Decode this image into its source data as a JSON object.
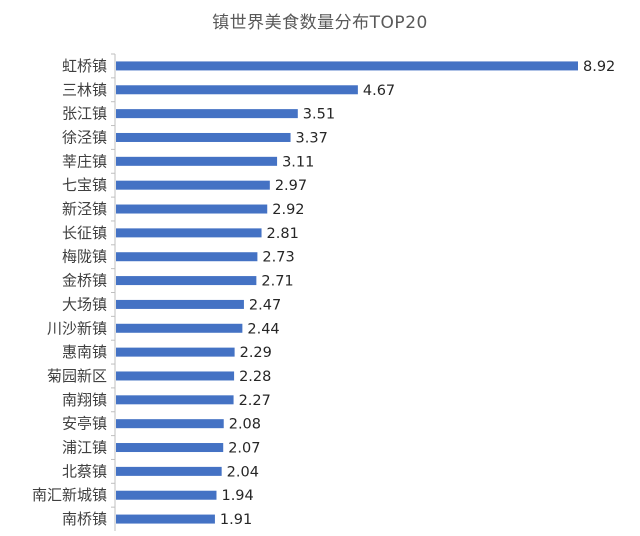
{
  "chart_data": {
    "type": "bar",
    "orientation": "horizontal",
    "title": "镇世界美食数量分布TOP20",
    "categories": [
      "虹桥镇",
      "三林镇",
      "张江镇",
      "徐泾镇",
      "莘庄镇",
      "七宝镇",
      "新泾镇",
      "长征镇",
      "梅陇镇",
      "金桥镇",
      "大场镇",
      "川沙新镇",
      "惠南镇",
      "菊园新区",
      "南翔镇",
      "安亭镇",
      "浦江镇",
      "北蔡镇",
      "南汇新城镇",
      "南桥镇"
    ],
    "values": [
      8.92,
      4.67,
      3.51,
      3.37,
      3.11,
      2.97,
      2.92,
      2.81,
      2.73,
      2.71,
      2.47,
      2.44,
      2.29,
      2.28,
      2.27,
      2.08,
      2.07,
      2.04,
      1.94,
      1.91
    ],
    "value_labels": [
      "8.92",
      "4.67",
      "3.51",
      "3.37",
      "3.11",
      "2.97",
      "2.92",
      "2.81",
      "2.73",
      "2.71",
      "2.47",
      "2.44",
      "2.29",
      "2.28",
      "2.27",
      "2.08",
      "2.07",
      "2.04",
      "1.94",
      "1.91"
    ],
    "xlabel": "",
    "ylabel": "",
    "xlim": [
      0,
      8.92
    ],
    "grid": false,
    "legend": "none",
    "bar_color": "#4472C4",
    "axis_color": "#BFBFBF"
  }
}
